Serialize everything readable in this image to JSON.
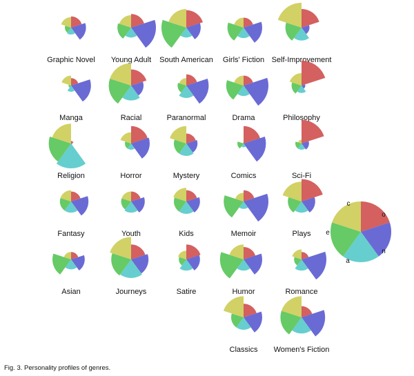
{
  "caption": "Fig. 3. Personality profiles of genres.",
  "chart_data": {
    "type": "rose",
    "description_of_encoding": "",
    "trait_colors": {
      "o": "#cf4f4f",
      "n": "#5a5ad0",
      "a": "#55c9c9",
      "e": "#55c455",
      "c": "#cccc55"
    },
    "legend": {
      "labels": [
        "c",
        "o",
        "e",
        "n",
        "a"
      ]
    },
    "genres": [
      {
        "name": "Graphic Novel",
        "values": {
          "o": 0.45,
          "n": 0.6,
          "a": 0.28,
          "e": 0.25,
          "c": 0.42
        }
      },
      {
        "name": "Young Adult",
        "values": {
          "o": 0.55,
          "n": 1.0,
          "a": 0.4,
          "e": 0.55,
          "c": 0.5
        }
      },
      {
        "name": "South American",
        "values": {
          "o": 0.7,
          "n": 0.58,
          "a": 0.4,
          "e": 1.0,
          "c": 0.75
        }
      },
      {
        "name": "Girls' Fiction",
        "values": {
          "o": 0.4,
          "n": 0.75,
          "a": 0.42,
          "e": 0.65,
          "c": 0.4
        }
      },
      {
        "name": "Self-Improvement",
        "values": {
          "o": 0.75,
          "n": 0.32,
          "a": 0.52,
          "e": 0.65,
          "c": 1.0
        }
      },
      {
        "name": "Manga",
        "values": {
          "o": 0.3,
          "n": 0.8,
          "a": 0.25,
          "e": 0.1,
          "c": 0.4
        }
      },
      {
        "name": "Racial",
        "values": {
          "o": 0.65,
          "n": 0.5,
          "a": 0.6,
          "e": 0.9,
          "c": 0.9
        }
      },
      {
        "name": "Paranormal",
        "values": {
          "o": 0.45,
          "n": 0.9,
          "a": 0.5,
          "e": 0.35,
          "c": 0.3
        }
      },
      {
        "name": "Drama",
        "values": {
          "o": 0.4,
          "n": 1.0,
          "a": 0.42,
          "e": 0.7,
          "c": 0.4
        }
      },
      {
        "name": "Philosophy",
        "values": {
          "o": 1.0,
          "n": 0.15,
          "a": 0.3,
          "e": 0.4,
          "c": 0.5
        }
      },
      {
        "name": "Religion",
        "values": {
          "o": 0.1,
          "n": 0.05,
          "a": 1.0,
          "e": 0.9,
          "c": 0.8
        }
      },
      {
        "name": "Horror",
        "values": {
          "o": 0.7,
          "n": 0.75,
          "a": 0.25,
          "e": 0.25,
          "c": 0.45
        }
      },
      {
        "name": "Mystery",
        "values": {
          "o": 0.4,
          "n": 0.45,
          "a": 0.5,
          "e": 0.5,
          "c": 0.7
        }
      },
      {
        "name": "Comics",
        "values": {
          "o": 0.7,
          "n": 0.9,
          "a": 0.15,
          "e": 0.25,
          "c": 0.05
        }
      },
      {
        "name": "Sci-Fi",
        "values": {
          "o": 0.95,
          "n": 0.3,
          "a": 0.25,
          "e": 0.25,
          "c": 0.15
        }
      },
      {
        "name": "Fantasy",
        "values": {
          "o": 0.4,
          "n": 0.7,
          "a": 0.45,
          "e": 0.45,
          "c": 0.45
        }
      },
      {
        "name": "Youth",
        "values": {
          "o": 0.4,
          "n": 0.55,
          "a": 0.45,
          "e": 0.4,
          "c": 0.4
        }
      },
      {
        "name": "Kids",
        "values": {
          "o": 0.45,
          "n": 0.55,
          "a": 0.5,
          "e": 0.5,
          "c": 0.55
        }
      },
      {
        "name": "Memoir",
        "values": {
          "o": 0.45,
          "n": 1.0,
          "a": 0.3,
          "e": 0.8,
          "c": 0.35
        }
      },
      {
        "name": "Plays",
        "values": {
          "o": 0.9,
          "n": 0.55,
          "a": 0.45,
          "e": 0.55,
          "c": 0.8
        }
      },
      {
        "name": "Asian",
        "values": {
          "o": 0.3,
          "n": 0.55,
          "a": 0.4,
          "e": 0.75,
          "c": 0.3
        }
      },
      {
        "name": "Journeys",
        "values": {
          "o": 0.6,
          "n": 0.7,
          "a": 0.75,
          "e": 0.8,
          "c": 0.9
        }
      },
      {
        "name": "Satire",
        "values": {
          "o": 0.6,
          "n": 0.55,
          "a": 0.45,
          "e": 0.3,
          "c": 0.35
        }
      },
      {
        "name": "Humor",
        "values": {
          "o": 0.5,
          "n": 0.75,
          "a": 0.45,
          "e": 0.95,
          "c": 0.6
        }
      },
      {
        "name": "Romance",
        "values": {
          "o": 0.3,
          "n": 1.0,
          "a": 0.45,
          "e": 0.3,
          "c": 0.4
        }
      },
      {
        "name": "Classics",
        "values": {
          "o": 0.55,
          "n": 0.75,
          "a": 0.5,
          "e": 0.5,
          "c": 0.85
        }
      },
      {
        "name": "Women's Fiction",
        "values": {
          "o": 0.45,
          "n": 0.95,
          "a": 0.65,
          "e": 0.85,
          "c": 0.85
        }
      }
    ]
  }
}
